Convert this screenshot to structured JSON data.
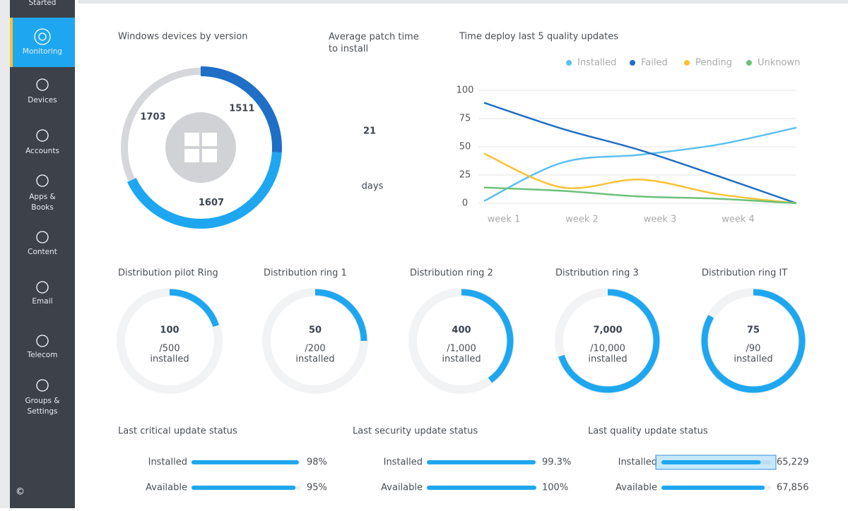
{
  "sidebar": {
    "items": [
      {
        "label": [
          "Started"
        ]
      },
      {
        "label": [
          "Monitoring"
        ],
        "active": true
      },
      {
        "label": [
          "Devices"
        ]
      },
      {
        "label": [
          "Accounts"
        ]
      },
      {
        "label": [
          "Apps &",
          "Books"
        ]
      },
      {
        "label": [
          "Content"
        ]
      },
      {
        "label": [
          "Email"
        ]
      },
      {
        "label": [
          "Telecom"
        ]
      },
      {
        "label": [
          "Groups &",
          "Settings"
        ]
      }
    ],
    "footer": "©"
  },
  "versions": {
    "title": "Windows devices by version",
    "segments": [
      {
        "label": "1511",
        "value": 26,
        "color": "#1f6fc6"
      },
      {
        "label": "1607",
        "value": 42,
        "color": "#1ea7f0"
      },
      {
        "label": "1703",
        "value": 32,
        "color": "#d5d7da"
      }
    ]
  },
  "patch_time": {
    "title": "Average patch time to install",
    "value": 21,
    "unit": "days"
  },
  "chart_data": {
    "type": "line",
    "title": "Time deploy last 5 quality updates",
    "categories": [
      "week 1",
      "week 2",
      "week 3",
      "week 4",
      null
    ],
    "series": [
      {
        "name": "Installed",
        "color": "#5bc0f0",
        "values": [
          2,
          36,
          43,
          52,
          67
        ]
      },
      {
        "name": "Failed",
        "color": "#1f6fc6",
        "values": [
          89,
          66,
          47,
          24,
          0
        ]
      },
      {
        "name": "Pending",
        "color": "#f8c232",
        "values": [
          44,
          14,
          21,
          8,
          0
        ]
      },
      {
        "name": "Unknown",
        "color": "#6cc17a",
        "values": [
          14,
          11,
          6,
          4,
          0
        ]
      }
    ],
    "ylim": [
      0,
      100
    ],
    "yticks": [
      100,
      75,
      50,
      25,
      0
    ],
    "grid": true,
    "legend": "top"
  },
  "rings": [
    {
      "title": "Distribution pilot Ring",
      "value": 100,
      "total": 500,
      "total_label": "/500",
      "status": "installed"
    },
    {
      "title": "Distribution ring 1",
      "value": 50,
      "total": 200,
      "total_label": "/200",
      "status": "installed"
    },
    {
      "title": "Distribution ring 2",
      "value": 400,
      "total": 1000,
      "total_label": "/1,000",
      "status": "installed"
    },
    {
      "title": "Distribution ring 3",
      "value": 7000,
      "value_label": "7,000",
      "total": 10000,
      "total_label": "/10,000",
      "status": "installed"
    },
    {
      "title": "Distribution ring IT",
      "value": 75,
      "total": 90,
      "total_label": "/90",
      "status": "installed"
    }
  ],
  "status_bars": [
    {
      "title": "Last critical update status",
      "xlim": [
        0,
        100
      ],
      "rows": [
        {
          "label": "Installed",
          "value": 98,
          "value_label": "98%"
        },
        {
          "label": "Available",
          "value": 95,
          "value_label": "95%"
        }
      ]
    },
    {
      "title": "Last security update status",
      "xlim": [
        0,
        100
      ],
      "rows": [
        {
          "label": "Installed",
          "value": 99.3,
          "value_label": "99.3%"
        },
        {
          "label": "Available",
          "value": 100,
          "value_label": "100%"
        }
      ]
    },
    {
      "title": "Last quality update status",
      "xlim": [
        0,
        72000
      ],
      "rows": [
        {
          "label": "Installed",
          "value": 65229,
          "value_label": "65,229",
          "selected": true
        },
        {
          "label": "Available",
          "value": 67856,
          "value_label": "67,856"
        }
      ]
    }
  ]
}
